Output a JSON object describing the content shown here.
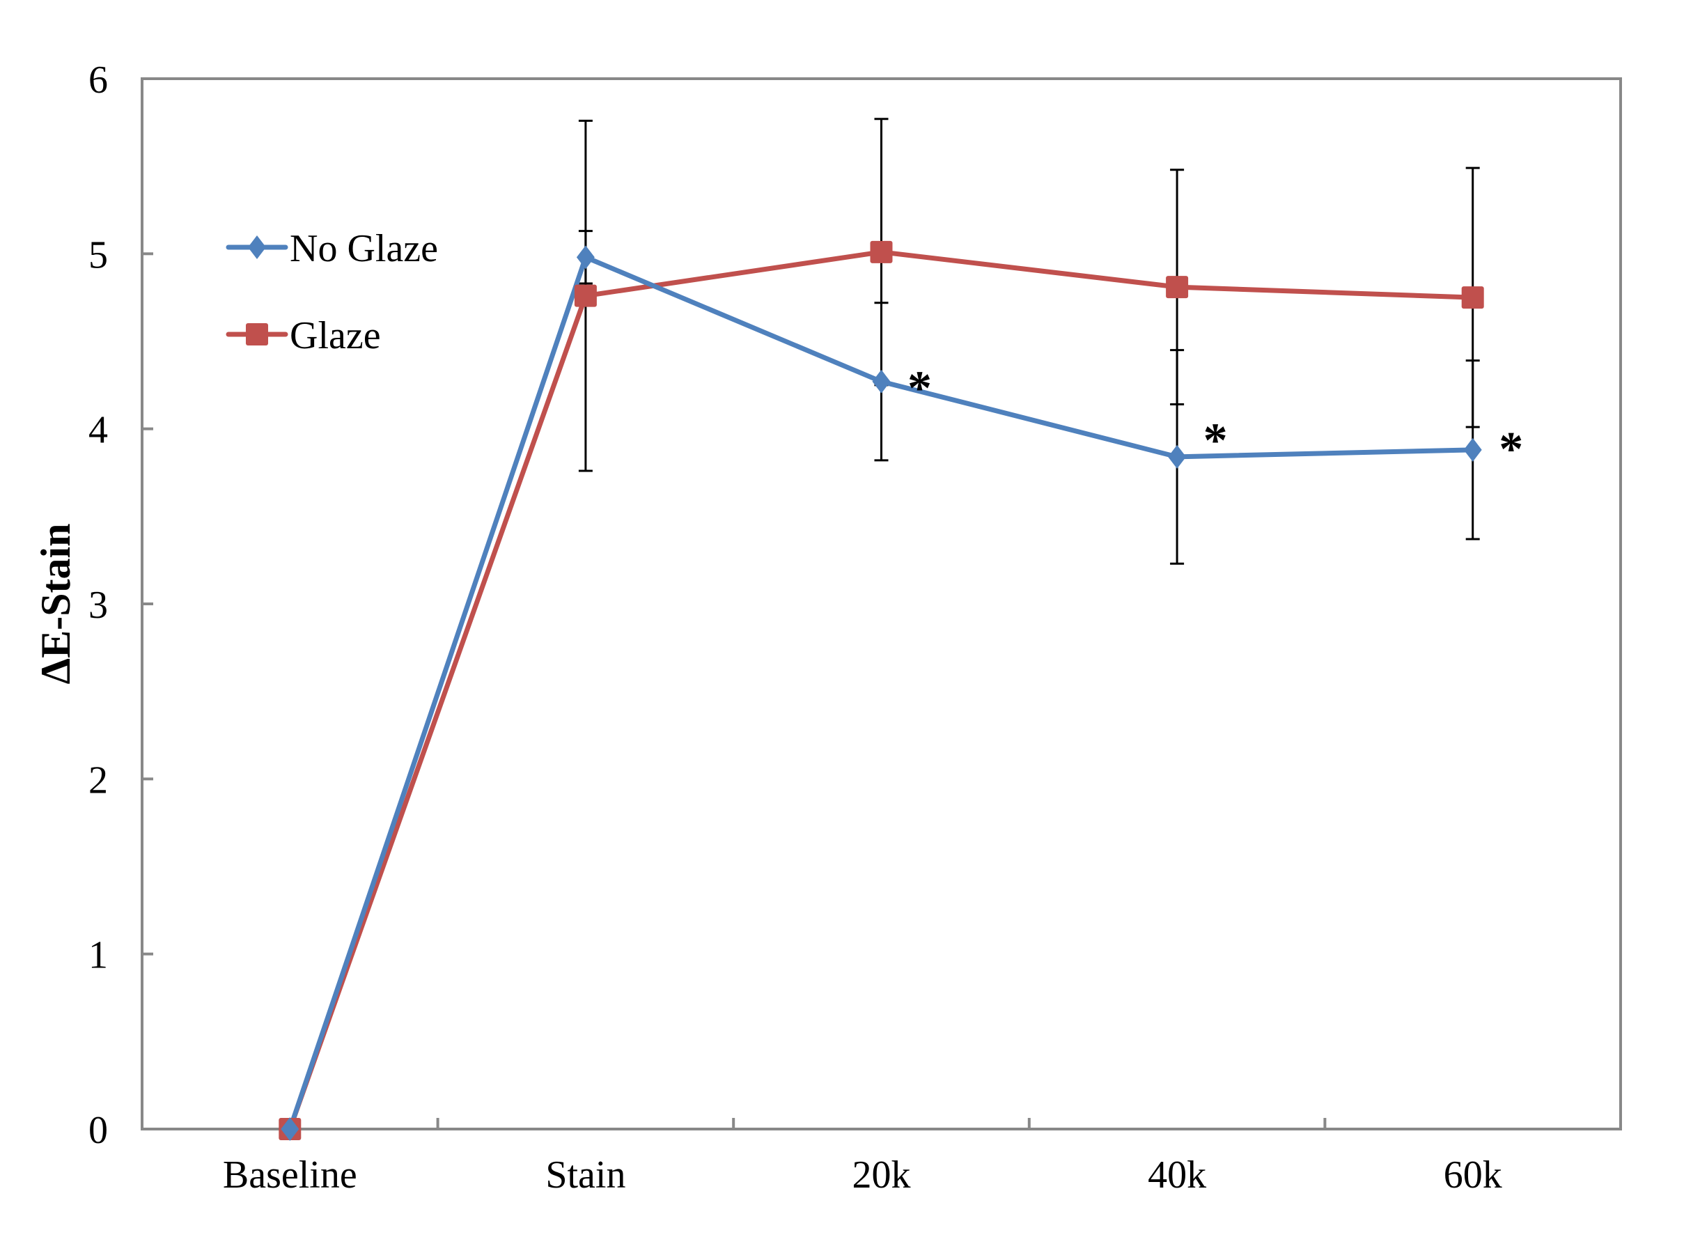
{
  "chart_data": {
    "type": "line",
    "title": "",
    "xlabel": "",
    "ylabel": "ΔE-Stain",
    "ylim": [
      0,
      6
    ],
    "yticks": [
      "0",
      "1",
      "2",
      "3",
      "4",
      "5",
      "6"
    ],
    "categories": [
      "Baseline",
      "Stain",
      "20k",
      "40k",
      "60k"
    ],
    "grid": false,
    "legend_position": "top-left",
    "series": [
      {
        "name": "No Glaze",
        "color": "#4F81BD",
        "marker": "diamond",
        "values": [
          0,
          4.98,
          4.27,
          3.84,
          3.88
        ],
        "errors": [
          0,
          0.15,
          0.45,
          0.61,
          0.51
        ]
      },
      {
        "name": "Glaze",
        "color": "#C0504D",
        "marker": "square",
        "values": [
          0,
          4.76,
          5.01,
          4.81,
          4.75
        ],
        "errors": [
          0,
          1.0,
          0.76,
          0.67,
          0.74
        ]
      }
    ],
    "annotations": [
      {
        "text": "*",
        "category": "20k",
        "y": 4.3
      },
      {
        "text": "*",
        "category": "40k",
        "y": 4.0
      },
      {
        "text": "*",
        "category": "60k",
        "y": 3.95
      }
    ]
  }
}
